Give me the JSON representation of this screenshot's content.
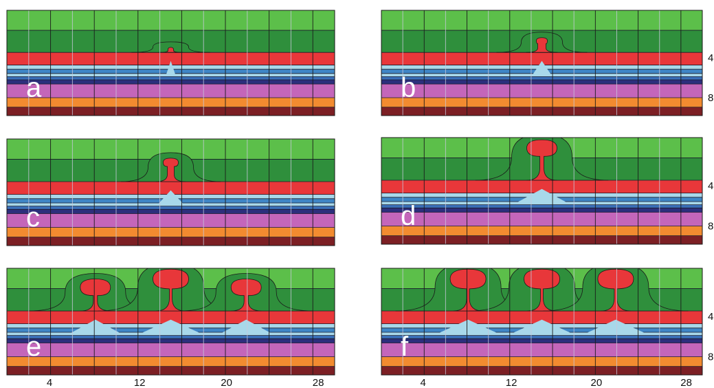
{
  "panels": [
    {
      "label": "a"
    },
    {
      "label": "b"
    },
    {
      "label": "c"
    },
    {
      "label": "d"
    },
    {
      "label": "e"
    },
    {
      "label": "f"
    }
  ],
  "x_ticks": [
    "4",
    "12",
    "20",
    "28"
  ],
  "right_ticks": [
    "4",
    "8"
  ]
}
